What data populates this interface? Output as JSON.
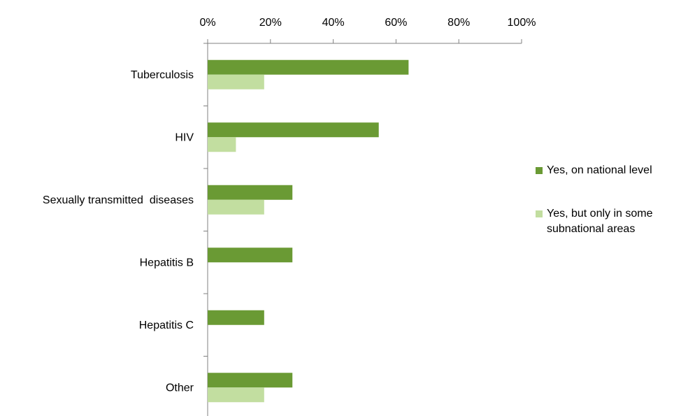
{
  "chart_data": {
    "type": "bar",
    "orientation": "horizontal",
    "categories": [
      "Tuberculosis",
      "HIV",
      "Sexually transmitted  diseases",
      "Hepatitis B",
      "Hepatitis C",
      "Other"
    ],
    "series": [
      {
        "name": "Yes, on national level",
        "color": "#6a9a34",
        "values": [
          64,
          54.5,
          27,
          27,
          18,
          27
        ]
      },
      {
        "name": "Yes, but only in some subnational areas",
        "color": "#c2dea0",
        "values": [
          18,
          9,
          18,
          0,
          0,
          18
        ]
      }
    ],
    "xlim": [
      0,
      100
    ],
    "x_ticks": [
      "0%",
      "20%",
      "40%",
      "60%",
      "80%",
      "100%"
    ],
    "x_tick_values": [
      0,
      20,
      40,
      60,
      80,
      100
    ],
    "x_axis_position": "top",
    "grid": false,
    "legend_position": "right"
  }
}
